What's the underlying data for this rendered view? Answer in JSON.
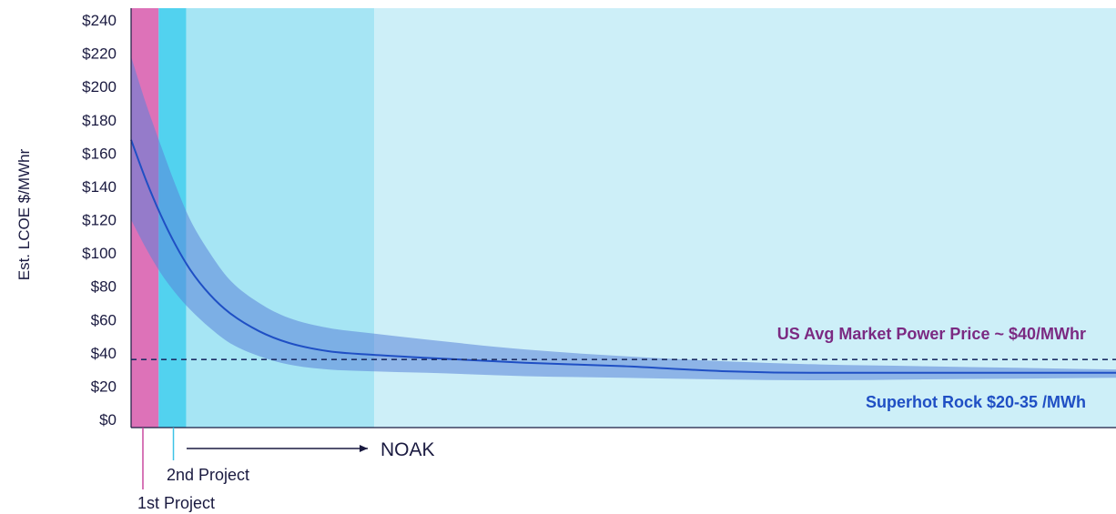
{
  "chart_data": {
    "type": "line",
    "ylabel": "Est. LCOE $/MWhr",
    "ylim": [
      0,
      240
    ],
    "y_ticks": [
      {
        "value": 0,
        "label": "$0"
      },
      {
        "value": 20,
        "label": "$20"
      },
      {
        "value": 40,
        "label": "$40"
      },
      {
        "value": 60,
        "label": "$60"
      },
      {
        "value": 80,
        "label": "$80"
      },
      {
        "value": 100,
        "label": "$100"
      },
      {
        "value": 120,
        "label": "$120"
      },
      {
        "value": 140,
        "label": "$140"
      },
      {
        "value": 160,
        "label": "$160"
      },
      {
        "value": 180,
        "label": "$180"
      },
      {
        "value": 200,
        "label": "$200"
      },
      {
        "value": 220,
        "label": "$220"
      },
      {
        "value": 240,
        "label": "$240"
      }
    ],
    "grid": false,
    "xlim": [
      0,
      100
    ],
    "series": [
      {
        "color": "#1f4fc4",
        "band_color": "#5a84d8",
        "points": [
          {
            "x": 0,
            "y": 168,
            "lo": 120,
            "hi": 218
          },
          {
            "x": 1.5,
            "y": 144,
            "lo": 103,
            "hi": 190
          },
          {
            "x": 3,
            "y": 123,
            "lo": 88,
            "hi": 165
          },
          {
            "x": 4.5,
            "y": 105,
            "lo": 76,
            "hi": 141
          },
          {
            "x": 6,
            "y": 90,
            "lo": 66,
            "hi": 120
          },
          {
            "x": 8,
            "y": 75,
            "lo": 55,
            "hi": 100
          },
          {
            "x": 10,
            "y": 64,
            "lo": 46,
            "hi": 84
          },
          {
            "x": 13,
            "y": 53,
            "lo": 38,
            "hi": 70
          },
          {
            "x": 16,
            "y": 46,
            "lo": 33,
            "hi": 61
          },
          {
            "x": 20,
            "y": 41,
            "lo": 30,
            "hi": 55
          },
          {
            "x": 24,
            "y": 39,
            "lo": 29,
            "hi": 52
          },
          {
            "x": 30,
            "y": 37,
            "lo": 28,
            "hi": 48
          },
          {
            "x": 40,
            "y": 34,
            "lo": 26,
            "hi": 42
          },
          {
            "x": 50,
            "y": 32,
            "lo": 25,
            "hi": 38
          },
          {
            "x": 60,
            "y": 29,
            "lo": 24,
            "hi": 35
          },
          {
            "x": 70,
            "y": 28,
            "lo": 23.5,
            "hi": 33
          },
          {
            "x": 80,
            "y": 28,
            "lo": 24,
            "hi": 32
          },
          {
            "x": 90,
            "y": 28,
            "lo": 24.5,
            "hi": 31
          },
          {
            "x": 100,
            "y": 28,
            "lo": 25,
            "hi": 30
          }
        ]
      }
    ],
    "regions": [
      {
        "name": "1st Project",
        "from": 0,
        "to": 2.8,
        "color": "#dd72b8"
      },
      {
        "name": "2nd Project",
        "from": 2.8,
        "to": 5.6,
        "color": "#52d2ef"
      },
      {
        "name": "NOAK ramp",
        "from": 5.6,
        "to": 24.7,
        "color": "#a6e5f4"
      },
      {
        "name": "NOAK",
        "from": 24.7,
        "to": 100,
        "color": "#cdeff8"
      }
    ],
    "reference_line": {
      "value": 36,
      "color": "#1e2f66"
    },
    "annotations": {
      "market_price": {
        "text": "US Avg Market Power Price ~ $40/MWhr",
        "color": "#7b2a82"
      },
      "superhot_rock": {
        "text": "Superhot Rock $20-35 /MWh",
        "color": "#1f4fc4"
      },
      "noak": "NOAK",
      "first_project": {
        "text": "1st Project",
        "x": 1.2,
        "color": "#c94aa0"
      },
      "second_project": {
        "text": "2nd Project",
        "x": 4.3,
        "color": "#3ec3e6"
      }
    }
  }
}
